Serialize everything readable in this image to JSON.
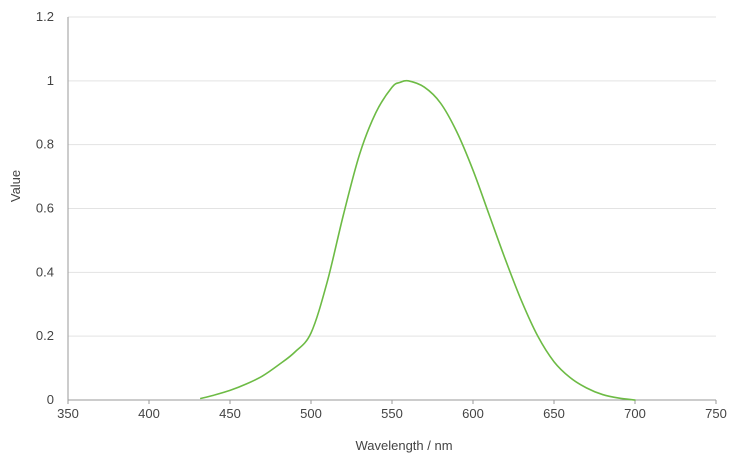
{
  "chart_data": {
    "type": "line",
    "title": "",
    "xlabel": "Wavelength / nm",
    "ylabel": "Value",
    "xlim": [
      350,
      750
    ],
    "ylim": [
      0,
      1.2
    ],
    "x_ticks": [
      350,
      400,
      450,
      500,
      550,
      600,
      650,
      700,
      750
    ],
    "y_ticks": [
      {
        "value": 0,
        "label": "0"
      },
      {
        "value": 0.2,
        "label": "0.2"
      },
      {
        "value": 0.4,
        "label": "0.4"
      },
      {
        "value": 0.6,
        "label": "0.6"
      },
      {
        "value": 0.8,
        "label": "0.8"
      },
      {
        "value": 1,
        "label": "1"
      },
      {
        "value": 1.2,
        "label": "1.2"
      }
    ],
    "grid": {
      "horizontal": true,
      "vertical": false
    },
    "line_color": "#6dbb45",
    "series": [
      {
        "x": [
          432,
          440,
          450,
          460,
          470,
          480,
          490,
          500,
          510,
          520,
          530,
          540,
          550,
          555,
          560,
          570,
          580,
          590,
          600,
          610,
          620,
          630,
          640,
          650,
          660,
          670,
          680,
          690,
          700
        ],
        "y": [
          0.005,
          0.015,
          0.03,
          0.05,
          0.075,
          0.11,
          0.15,
          0.21,
          0.37,
          0.58,
          0.77,
          0.9,
          0.98,
          0.995,
          1.0,
          0.98,
          0.93,
          0.84,
          0.72,
          0.58,
          0.44,
          0.31,
          0.2,
          0.12,
          0.07,
          0.038,
          0.017,
          0.006,
          0.0
        ]
      }
    ]
  }
}
